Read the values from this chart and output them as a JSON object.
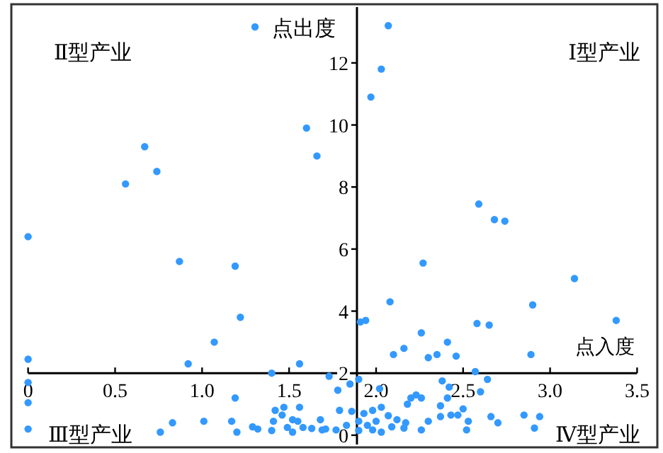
{
  "chart_data": {
    "type": "scatter",
    "xlabel": "点入度",
    "legend": "top",
    "marker": "circle",
    "xlim": [
      -0.08,
      3.6
    ],
    "ylim": [
      -0.3,
      13.8
    ],
    "xticks": [
      0,
      0.5,
      {
        "value": 1,
        "label": "1.0"
      },
      1.5,
      {
        "value": 2,
        "label": "2.0"
      },
      2.5,
      {
        "value": 3,
        "label": "3.0"
      },
      3.5
    ],
    "yticks": [
      0,
      2,
      4,
      6,
      8,
      10,
      12
    ],
    "annotations": [
      "Ⅱ型产业",
      "Ⅰ型产业",
      "Ⅲ型产业",
      "Ⅳ型产业"
    ],
    "series": [
      {
        "name": "点出度",
        "color": "#3399ff",
        "x": [
          1.6,
          1.66,
          0.67,
          0.74,
          0.56,
          2.07,
          2.03,
          1.97,
          2.59,
          2.68,
          2.74,
          0,
          0.87,
          1.19,
          1.22,
          1.07,
          0,
          0.92,
          1.4,
          1.56,
          1.73,
          0,
          0,
          0,
          1.19,
          0.83,
          0.76,
          1.01,
          1.17,
          1.2,
          1.29,
          1.32,
          1.4,
          1.41,
          1.42,
          1.47,
          1.46,
          1.49,
          1.52,
          1.52,
          1.56,
          1.55,
          1.58,
          1.63,
          1.68,
          1.69,
          1.71,
          1.78,
          1.94,
          1.91,
          2.08,
          2.27,
          2.26,
          2.1,
          2.16,
          2.3,
          2.35,
          2.41,
          2.46,
          2.58,
          2.65,
          3.14,
          2.9,
          2.89,
          3.38,
          2.57,
          2.64,
          2.6,
          2.38,
          2.42,
          2.37,
          2.41,
          2.2,
          2.23,
          2.26,
          2.18,
          2.02,
          1.9,
          1.85,
          2.03,
          1.98,
          1.93,
          1.86,
          1.79,
          2.0,
          2.07,
          2.12,
          2.17,
          1.95,
          1.9,
          1.83,
          1.77,
          1.9,
          1.98,
          2.03,
          2.09,
          2.16,
          2.26,
          2.3,
          2.37,
          2.43,
          2.47,
          2.5,
          2.53,
          2.52,
          2.66,
          2.7,
          2.85,
          2.94,
          2.91
        ],
        "values": [
          9.9,
          9.0,
          9.3,
          8.5,
          8.1,
          13.2,
          11.8,
          10.9,
          7.45,
          6.95,
          6.9,
          6.4,
          5.6,
          5.45,
          3.8,
          3.0,
          2.45,
          2.3,
          2.0,
          2.3,
          1.9,
          1.7,
          1.05,
          0.2,
          1.2,
          0.4,
          0.1,
          0.45,
          0.45,
          0.1,
          0.27,
          0.2,
          0.15,
          0.45,
          0.8,
          0.9,
          0.65,
          0.25,
          0.1,
          0.5,
          0.9,
          0.45,
          0.25,
          0.22,
          0.5,
          0.17,
          0.2,
          1.45,
          3.7,
          3.65,
          4.3,
          5.55,
          3.3,
          2.6,
          2.8,
          2.5,
          2.6,
          3.0,
          2.55,
          3.6,
          3.55,
          5.05,
          4.2,
          2.6,
          3.7,
          2.05,
          1.8,
          1.4,
          1.75,
          1.55,
          0.95,
          1.2,
          1.2,
          1.3,
          1.2,
          1.0,
          1.5,
          1.8,
          1.65,
          0.9,
          0.8,
          0.7,
          0.77,
          0.8,
          0.45,
          0.63,
          0.5,
          0.4,
          0.32,
          0.45,
          0.32,
          0.17,
          0.15,
          0.17,
          0.1,
          0.27,
          0.23,
          0.17,
          0.45,
          0.6,
          0.65,
          0.65,
          0.85,
          0.45,
          0.17,
          0.6,
          0.4,
          0.65,
          0.6,
          0.23
        ]
      }
    ]
  }
}
